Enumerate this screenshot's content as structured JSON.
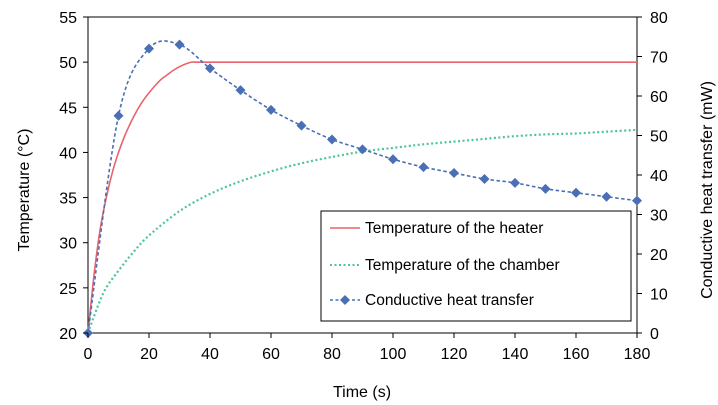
{
  "chart_data": {
    "type": "line",
    "title": "",
    "xlabel": "Time (s)",
    "ylabel_left": "Temperature (°C)",
    "ylabel_right": "Conductive heat transfer (mW)",
    "xlim": [
      0,
      180
    ],
    "ylim_left": [
      20,
      55
    ],
    "ylim_right": [
      0,
      80
    ],
    "x_ticks": [
      0,
      20,
      40,
      60,
      80,
      100,
      120,
      140,
      160,
      180
    ],
    "y_left_ticks": [
      20,
      25,
      30,
      35,
      40,
      45,
      50,
      55
    ],
    "y_right_ticks": [
      0,
      10,
      20,
      30,
      40,
      50,
      60,
      70,
      80
    ],
    "grid": false,
    "legend_position": "bottom-right",
    "series": [
      {
        "name": "Temperature of the heater",
        "axis": "left",
        "style": "solid",
        "color": "#e8646a",
        "x": [
          0,
          2,
          4,
          6,
          8,
          10,
          12,
          14,
          16,
          18,
          20,
          22,
          24,
          26,
          28,
          30,
          32,
          34,
          36,
          38,
          40,
          60,
          80,
          100,
          120,
          140,
          160,
          180
        ],
        "y": [
          20.0,
          26.5,
          31.5,
          35.0,
          37.8,
          40.0,
          41.8,
          43.3,
          44.6,
          45.7,
          46.6,
          47.4,
          48.1,
          48.6,
          49.1,
          49.5,
          49.8,
          50.0,
          50.0,
          50.0,
          50.0,
          50.0,
          50.0,
          50.0,
          50.0,
          50.0,
          50.0,
          50.0
        ]
      },
      {
        "name": "Temperature of the chamber",
        "axis": "left",
        "style": "dotted",
        "color": "#4cc49a",
        "x": [
          0,
          5,
          10,
          15,
          20,
          30,
          40,
          50,
          60,
          70,
          80,
          90,
          100,
          110,
          120,
          130,
          140,
          150,
          160,
          170,
          180
        ],
        "y": [
          20.0,
          24.4,
          26.9,
          29.0,
          30.8,
          33.5,
          35.4,
          36.8,
          37.9,
          38.8,
          39.5,
          40.1,
          40.5,
          40.9,
          41.2,
          41.5,
          41.8,
          42.0,
          42.1,
          42.3,
          42.5
        ]
      },
      {
        "name": "Conductive heat transfer",
        "axis": "right",
        "style": "dashed-markers",
        "color": "#4a6fb5",
        "marker": "diamond",
        "x": [
          0,
          10,
          20,
          30,
          40,
          50,
          60,
          70,
          80,
          90,
          100,
          110,
          120,
          130,
          140,
          150,
          160,
          170,
          180
        ],
        "y": [
          0,
          55,
          72,
          73,
          67,
          61.5,
          56.5,
          52.5,
          49,
          46.5,
          44,
          42,
          40.5,
          39,
          38,
          36.5,
          35.5,
          34.5,
          33.5
        ]
      }
    ]
  }
}
